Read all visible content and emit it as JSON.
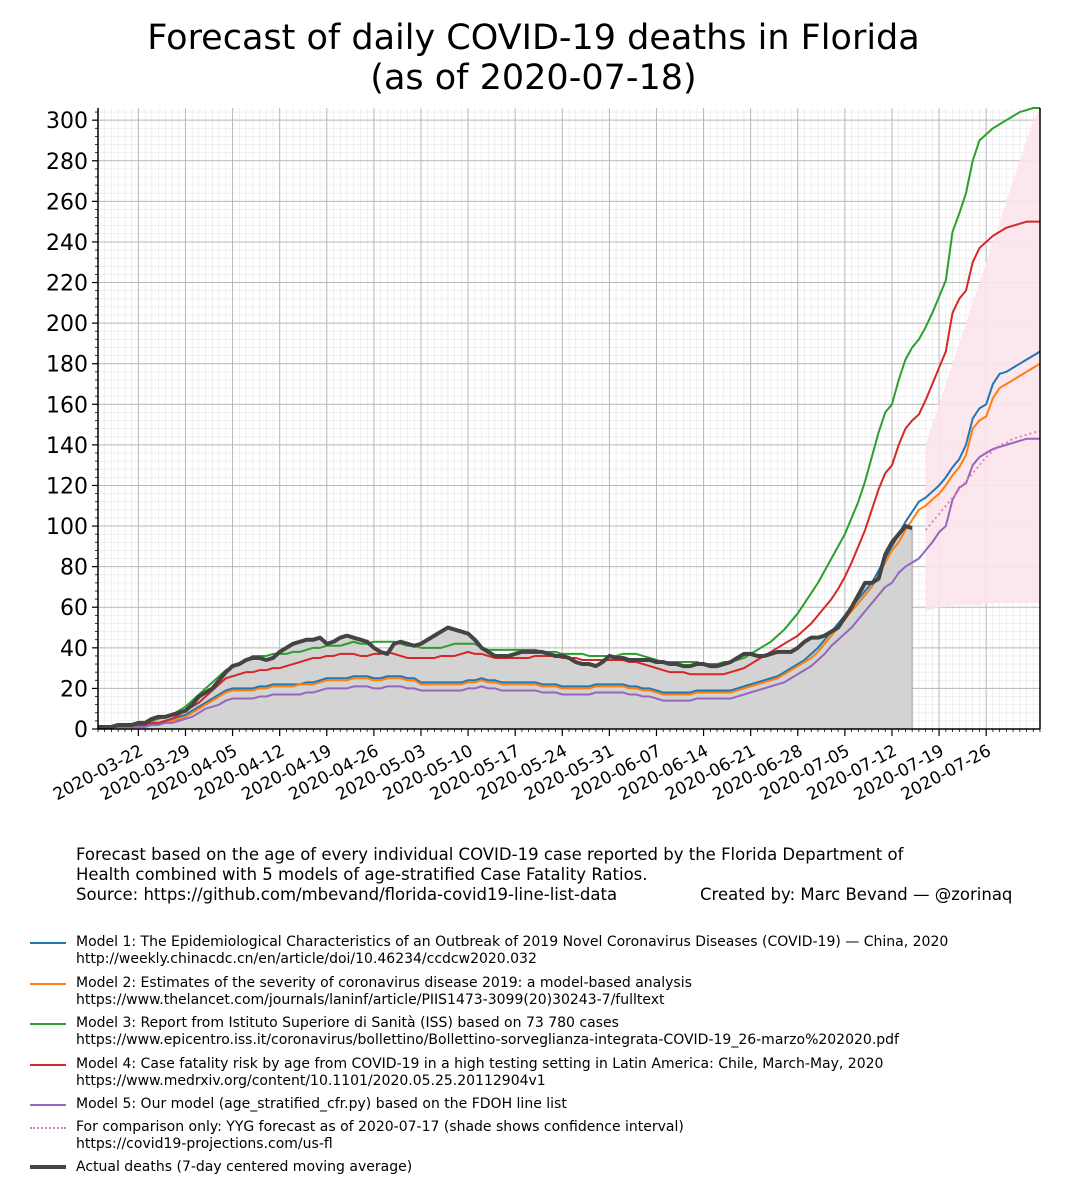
{
  "title_line1": "Forecast of daily COVID-19 deaths in Florida",
  "title_line2": "(as of 2020-07-18)",
  "caption": {
    "line1": "Forecast based on the age of every individual COVID-19 case reported by the Florida Department of",
    "line2": "Health combined with 5 models of age-stratified Case Fatality Ratios.",
    "source": "Source: https://github.com/mbevand/florida-covid19-line-list-data",
    "credit": "Created by: Marc Bevand — @zorinaq"
  },
  "colors": {
    "model1": "#1f77b4",
    "model2": "#ff7f0e",
    "model3": "#2ca02c",
    "model4": "#d62728",
    "model5": "#9467bd",
    "yyg": "#e377c2",
    "actual": "#444444",
    "actual_fill": "#d3d3d3",
    "yyg_ci": "#fce4ec"
  },
  "legend": [
    {
      "key": "model1",
      "line1": "Model 1: The Epidemiological Characteristics of an Outbreak of 2019 Novel Coronavirus Diseases (COVID-19) — China, 2020",
      "line2": "http://weekly.chinacdc.cn/en/article/doi/10.46234/ccdcw2020.032"
    },
    {
      "key": "model2",
      "line1": "Model 2: Estimates of the severity of coronavirus disease 2019: a model-based analysis",
      "line2": "https://www.thelancet.com/journals/laninf/article/PIIS1473-3099(20)30243-7/fulltext"
    },
    {
      "key": "model3",
      "line1": "Model 3: Report from Istituto Superiore di Sanità (ISS) based on 73 780 cases",
      "line2": "https://www.epicentro.iss.it/coronavirus/bollettino/Bollettino-sorveglianza-integrata-COVID-19_26-marzo%202020.pdf"
    },
    {
      "key": "model4",
      "line1": "Model 4: Case fatality risk by age from COVID-19 in a high testing setting in Latin America: Chile, March-May, 2020",
      "line2": "https://www.medrxiv.org/content/10.1101/2020.05.25.20112904v1"
    },
    {
      "key": "model5",
      "line1": "Model 5: Our model (age_stratified_cfr.py) based on the FDOH line list",
      "line2": ""
    },
    {
      "key": "yyg",
      "line1": "For comparison only: YYG forecast as of 2020-07-17 (shade shows confidence interval)",
      "line2": "https://covid19-projections.com/us-fl"
    },
    {
      "key": "actual",
      "line1": "Actual deaths (7-day centered moving average)",
      "line2": ""
    }
  ],
  "chart_data": {
    "type": "line",
    "title": "Forecast of daily COVID-19 deaths in Florida (as of 2020-07-18)",
    "xlabel": "",
    "ylabel": "",
    "x_start": "2020-03-16",
    "x_tick_labels": [
      "2020-03-22",
      "2020-03-29",
      "2020-04-05",
      "2020-04-12",
      "2020-04-19",
      "2020-04-26",
      "2020-05-03",
      "2020-05-10",
      "2020-05-17",
      "2020-05-24",
      "2020-05-31",
      "2020-06-07",
      "2020-06-14",
      "2020-06-21",
      "2020-06-28",
      "2020-07-05",
      "2020-07-12",
      "2020-07-19",
      "2020-07-26"
    ],
    "x_tick_day_index": [
      6,
      13,
      20,
      27,
      34,
      41,
      48,
      55,
      62,
      69,
      76,
      83,
      90,
      97,
      104,
      111,
      118,
      125,
      132
    ],
    "xlim_days": [
      0,
      140
    ],
    "ylim": [
      0,
      306
    ],
    "y_ticks": [
      0,
      20,
      40,
      60,
      80,
      100,
      120,
      140,
      160,
      180,
      200,
      220,
      240,
      260,
      280,
      300
    ],
    "grid": true,
    "series": [
      {
        "name": "Model 1",
        "color_key": "model1",
        "start_day": 0,
        "values": [
          1,
          1,
          1,
          1,
          1,
          1,
          2,
          2,
          3,
          3,
          4,
          5,
          6,
          7,
          9,
          11,
          13,
          15,
          17,
          19,
          20,
          20,
          20,
          20,
          21,
          21,
          22,
          22,
          22,
          22,
          22,
          23,
          23,
          24,
          25,
          25,
          25,
          25,
          26,
          26,
          26,
          25,
          25,
          26,
          26,
          26,
          25,
          25,
          23,
          23,
          23,
          23,
          23,
          23,
          23,
          24,
          24,
          25,
          24,
          24,
          23,
          23,
          23,
          23,
          23,
          23,
          22,
          22,
          22,
          21,
          21,
          21,
          21,
          21,
          22,
          22,
          22,
          22,
          22,
          21,
          21,
          20,
          20,
          19,
          18,
          18,
          18,
          18,
          18,
          19,
          19,
          19,
          19,
          19,
          19,
          20,
          21,
          22,
          23,
          24,
          25,
          26,
          28,
          30,
          32,
          34,
          37,
          40,
          44,
          48,
          52,
          56,
          60,
          64,
          68,
          72,
          78,
          84,
          90,
          96,
          102,
          107,
          112,
          114,
          117,
          120,
          124,
          129,
          133,
          140,
          153,
          158,
          160,
          170,
          175,
          176,
          178,
          180,
          182,
          184,
          186
        ]
      },
      {
        "name": "Model 2",
        "color_key": "model2",
        "start_day": 0,
        "values": [
          1,
          1,
          1,
          1,
          1,
          1,
          1,
          2,
          2,
          3,
          3,
          4,
          5,
          6,
          8,
          10,
          12,
          14,
          16,
          18,
          19,
          19,
          19,
          19,
          20,
          20,
          21,
          21,
          21,
          21,
          22,
          22,
          22,
          23,
          24,
          24,
          24,
          24,
          25,
          25,
          25,
          24,
          24,
          25,
          25,
          25,
          24,
          24,
          22,
          22,
          22,
          22,
          22,
          22,
          22,
          23,
          23,
          24,
          23,
          23,
          22,
          22,
          22,
          22,
          22,
          22,
          21,
          21,
          21,
          20,
          20,
          20,
          20,
          20,
          21,
          21,
          21,
          21,
          21,
          20,
          20,
          19,
          19,
          18,
          17,
          17,
          17,
          17,
          17,
          18,
          18,
          18,
          18,
          18,
          18,
          19,
          20,
          21,
          22,
          23,
          24,
          25,
          27,
          29,
          31,
          33,
          35,
          38,
          42,
          46,
          50,
          54,
          58,
          62,
          66,
          70,
          76,
          82,
          88,
          92,
          98,
          103,
          108,
          110,
          113,
          116,
          120,
          125,
          129,
          135,
          148,
          152,
          154,
          163,
          168,
          170,
          172,
          174,
          176,
          178,
          180
        ]
      },
      {
        "name": "Model 3",
        "color_key": "model3",
        "start_day": 0,
        "values": [
          1,
          1,
          1,
          1,
          2,
          2,
          2,
          3,
          4,
          5,
          6,
          7,
          9,
          11,
          14,
          17,
          20,
          23,
          26,
          29,
          31,
          32,
          34,
          36,
          36,
          36,
          37,
          37,
          37,
          38,
          38,
          39,
          40,
          40,
          41,
          41,
          41,
          42,
          43,
          42,
          42,
          43,
          43,
          43,
          43,
          42,
          41,
          41,
          40,
          40,
          40,
          40,
          41,
          42,
          42,
          42,
          42,
          40,
          39,
          39,
          39,
          39,
          39,
          39,
          39,
          39,
          38,
          38,
          38,
          37,
          37,
          37,
          37,
          36,
          36,
          36,
          36,
          36,
          37,
          37,
          37,
          36,
          35,
          34,
          33,
          33,
          33,
          33,
          33,
          33,
          32,
          32,
          32,
          33,
          33,
          34,
          35,
          37,
          39,
          41,
          43,
          46,
          49,
          53,
          57,
          62,
          67,
          72,
          78,
          84,
          90,
          96,
          104,
          112,
          122,
          134,
          146,
          156,
          160,
          172,
          182,
          188,
          192,
          198,
          205,
          213,
          221,
          245,
          254,
          264,
          280,
          290,
          293,
          296,
          298,
          300,
          302,
          304,
          305,
          306,
          306
        ]
      },
      {
        "name": "Model 4",
        "color_key": "model4",
        "start_day": 0,
        "values": [
          1,
          1,
          1,
          1,
          1,
          1,
          2,
          2,
          3,
          3,
          4,
          5,
          7,
          9,
          11,
          13,
          16,
          19,
          22,
          25,
          26,
          27,
          28,
          28,
          29,
          29,
          30,
          30,
          31,
          32,
          33,
          34,
          35,
          35,
          36,
          36,
          37,
          37,
          37,
          36,
          36,
          37,
          37,
          38,
          37,
          36,
          35,
          35,
          35,
          35,
          35,
          36,
          36,
          36,
          37,
          38,
          37,
          37,
          36,
          35,
          35,
          35,
          35,
          35,
          35,
          36,
          36,
          36,
          36,
          35,
          35,
          35,
          34,
          34,
          34,
          34,
          34,
          34,
          34,
          33,
          33,
          32,
          31,
          30,
          29,
          28,
          28,
          28,
          27,
          27,
          27,
          27,
          27,
          27,
          28,
          29,
          30,
          32,
          34,
          36,
          38,
          40,
          42,
          44,
          46,
          49,
          52,
          56,
          60,
          64,
          69,
          75,
          82,
          90,
          98,
          108,
          118,
          126,
          130,
          140,
          148,
          152,
          155,
          162,
          170,
          178,
          186,
          205,
          212,
          216,
          230,
          237,
          240,
          243,
          245,
          247,
          248,
          249,
          250,
          250,
          250
        ]
      },
      {
        "name": "Model 5",
        "color_key": "model5",
        "start_day": 0,
        "values": [
          1,
          1,
          1,
          1,
          1,
          1,
          1,
          1,
          2,
          2,
          3,
          3,
          4,
          5,
          6,
          8,
          10,
          11,
          12,
          14,
          15,
          15,
          15,
          15,
          16,
          16,
          17,
          17,
          17,
          17,
          17,
          18,
          18,
          19,
          20,
          20,
          20,
          20,
          21,
          21,
          21,
          20,
          20,
          21,
          21,
          21,
          20,
          20,
          19,
          19,
          19,
          19,
          19,
          19,
          19,
          20,
          20,
          21,
          20,
          20,
          19,
          19,
          19,
          19,
          19,
          19,
          18,
          18,
          18,
          17,
          17,
          17,
          17,
          17,
          18,
          18,
          18,
          18,
          18,
          17,
          17,
          16,
          16,
          15,
          14,
          14,
          14,
          14,
          14,
          15,
          15,
          15,
          15,
          15,
          15,
          16,
          17,
          18,
          19,
          20,
          21,
          22,
          23,
          25,
          27,
          29,
          31,
          34,
          37,
          41,
          44,
          47,
          50,
          54,
          58,
          62,
          66,
          70,
          72,
          77,
          80,
          82,
          84,
          88,
          92,
          97,
          100,
          113,
          119,
          121,
          130,
          134,
          136,
          138,
          139,
          140,
          141,
          142,
          143,
          143,
          143
        ]
      },
      {
        "name": "YYG forecast",
        "color_key": "yyg",
        "start_day": 123,
        "dotted": true,
        "values": [
          98,
          102,
          106,
          110,
          114,
          118,
          122,
          126,
          130,
          134,
          137,
          140,
          141,
          143,
          144,
          145,
          146,
          147
        ]
      }
    ],
    "yyg_confidence_interval": {
      "start_day": 123,
      "lower": [
        58,
        59,
        60,
        60,
        61,
        61,
        61,
        61,
        61,
        62,
        62,
        62,
        62,
        62,
        62,
        62,
        62,
        62
      ],
      "upper": [
        140,
        150,
        160,
        170,
        180,
        190,
        200,
        210,
        220,
        230,
        240,
        250,
        260,
        270,
        280,
        290,
        300,
        310
      ]
    },
    "actual": {
      "name": "Actual deaths (7-day centered moving average)",
      "start_day": 0,
      "values": [
        1,
        1,
        1,
        2,
        2,
        2,
        3,
        3,
        5,
        6,
        6,
        7,
        8,
        9,
        12,
        16,
        18,
        20,
        24,
        28,
        31,
        32,
        34,
        35,
        35,
        34,
        35,
        38,
        40,
        42,
        43,
        44,
        44,
        45,
        42,
        43,
        45,
        46,
        45,
        44,
        43,
        40,
        38,
        37,
        42,
        43,
        42,
        41,
        42,
        44,
        46,
        48,
        50,
        49,
        48,
        47,
        44,
        40,
        38,
        36,
        36,
        36,
        37,
        38,
        38,
        38,
        38,
        37,
        36,
        36,
        35,
        33,
        32,
        32,
        31,
        33,
        36,
        35,
        35,
        34,
        34,
        34,
        34,
        33,
        33,
        32,
        32,
        31,
        31,
        32,
        32,
        31,
        31,
        32,
        33,
        35,
        37,
        37,
        36,
        36,
        37,
        38,
        38,
        38,
        40,
        43,
        45,
        45,
        46,
        48,
        50,
        55,
        60,
        66,
        72,
        72,
        74,
        86,
        92,
        96,
        100,
        99
      ]
    }
  }
}
